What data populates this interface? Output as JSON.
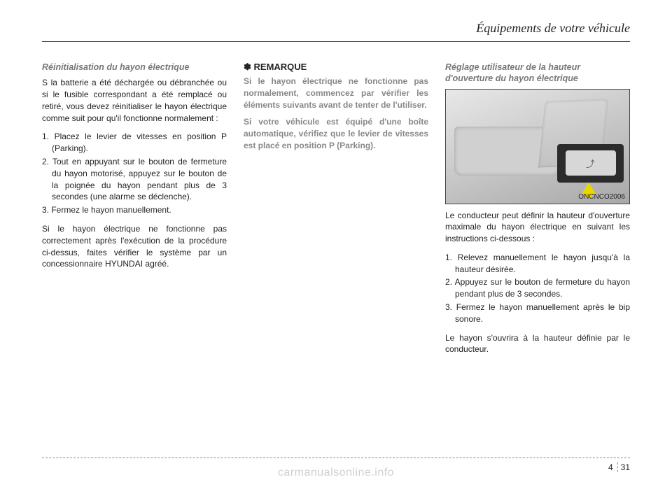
{
  "header": "Équipements de votre véhicule",
  "col1": {
    "subtitle": "Réinitialisation du hayon électrique",
    "intro": "S la batterie a été déchargée ou débranchée ou si le fusible correspondant a été remplacé ou retiré, vous devez réinitialiser le hayon électrique comme suit pour qu'il fonctionne normalement :",
    "items": [
      "1. Placez le levier de vitesses en position P (Parking).",
      "2. Tout en appuyant sur le bouton de fermeture du hayon motorisé, appuyez sur le bouton de la poignée du hayon pendant plus de 3 secondes (une alarme se déclenche).",
      "3. Fermez le hayon manuellement."
    ],
    "outro": "Si le hayon électrique ne fonctionne pas correctement après l'exécution de la procédure ci-dessus, faites vérifier le système par un concessionnaire HYUNDAI agréé."
  },
  "col2": {
    "title": "✽ REMARQUE",
    "p1": "Si le hayon électrique ne fonctionne pas normalement, commencez par vérifier les éléments suivants avant de tenter de l'utiliser.",
    "p2": "Si votre véhicule est équipé d'une boîte automatique, vérifiez que le levier de vitesses est placé en position P (Parking)."
  },
  "col3": {
    "subtitle": "Réglage utilisateur de la hauteur d'ouverture du hayon électrique",
    "figure_label": "ONCNCO2006",
    "intro": "Le conducteur peut définir la hauteur d'ouverture maximale du hayon électrique en suivant les instructions ci-dessous :",
    "items": [
      "1. Relevez manuellement le hayon jusqu'à la hauteur désirée.",
      "2. Appuyez sur le bouton de fermeture du hayon pendant plus de 3 secondes.",
      "3. Fermez le hayon manuellement après le bip sonore."
    ],
    "outro": "Le hayon s'ouvrira à la hauteur définie par le conducteur."
  },
  "page": {
    "chapter": "4",
    "num": "31"
  },
  "watermark": "carmanualsonline.info"
}
